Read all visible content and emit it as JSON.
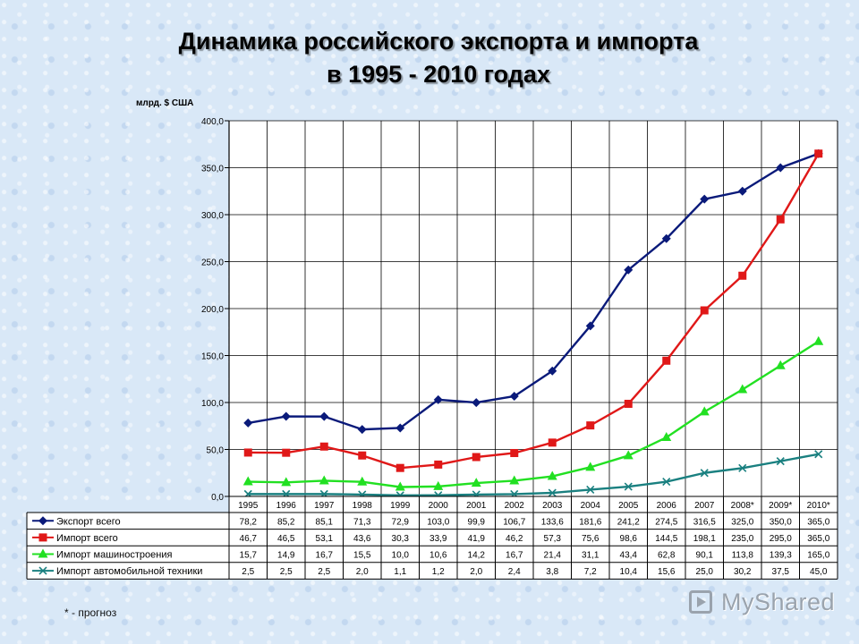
{
  "title_line1": "Динамика  российского экспорта и импорта",
  "title_line2": "в 1995 - 2010 годах",
  "footnote": "* - прогноз",
  "watermark": "MyShared",
  "chart_data": {
    "type": "line",
    "ylabel": "млрд. $ США",
    "ylim": [
      0,
      400
    ],
    "y_ticks": [
      "0,0",
      "50,0",
      "100,0",
      "150,0",
      "200,0",
      "250,0",
      "300,0",
      "350,0",
      "400,0"
    ],
    "categories": [
      "1995",
      "1996",
      "1997",
      "1998",
      "1999",
      "2000",
      "2001",
      "2002",
      "2003",
      "2004",
      "2005",
      "2006",
      "2007",
      "2008*",
      "2009*",
      "2010*"
    ],
    "grid": true,
    "legend": "data-table-below",
    "series": [
      {
        "name": "Экспорт всего",
        "color": "#0a1a7a",
        "marker": "diamond",
        "values": [
          78.2,
          85.2,
          85.1,
          71.3,
          72.9,
          103.0,
          99.9,
          106.7,
          133.6,
          181.6,
          241.2,
          274.5,
          316.5,
          325.0,
          350.0,
          365.0
        ],
        "labels": [
          "78,2",
          "85,2",
          "85,1",
          "71,3",
          "72,9",
          "103,0",
          "99,9",
          "106,7",
          "133,6",
          "181,6",
          "241,2",
          "274,5",
          "316,5",
          "325,0",
          "350,0",
          "365,0"
        ]
      },
      {
        "name": "Импорт всего",
        "color": "#e01818",
        "marker": "square",
        "values": [
          46.7,
          46.5,
          53.1,
          43.6,
          30.3,
          33.9,
          41.9,
          46.2,
          57.3,
          75.6,
          98.6,
          144.5,
          198.1,
          235.0,
          295.0,
          365.0
        ],
        "labels": [
          "46,7",
          "46,5",
          "53,1",
          "43,6",
          "30,3",
          "33,9",
          "41,9",
          "46,2",
          "57,3",
          "75,6",
          "98,6",
          "144,5",
          "198,1",
          "235,0",
          "295,0",
          "365,0"
        ]
      },
      {
        "name": "Импорт машиностроения",
        "color": "#22e022",
        "marker": "triangle",
        "values": [
          15.7,
          14.9,
          16.7,
          15.5,
          10.0,
          10.6,
          14.2,
          16.7,
          21.4,
          31.1,
          43.4,
          62.8,
          90.1,
          113.8,
          139.3,
          165.0
        ],
        "labels": [
          "15,7",
          "14,9",
          "16,7",
          "15,5",
          "10,0",
          "10,6",
          "14,2",
          "16,7",
          "21,4",
          "31,1",
          "43,4",
          "62,8",
          "90,1",
          "113,8",
          "139,3",
          "165,0"
        ]
      },
      {
        "name": "Импорт автомобильной техники",
        "color": "#1a8080",
        "marker": "x",
        "values": [
          2.5,
          2.5,
          2.5,
          2.0,
          1.1,
          1.2,
          2.0,
          2.4,
          3.8,
          7.2,
          10.4,
          15.6,
          25.0,
          30.2,
          37.5,
          45.0
        ],
        "labels": [
          "2,5",
          "2,5",
          "2,5",
          "2,0",
          "1,1",
          "1,2",
          "2,0",
          "2,4",
          "3,8",
          "7,2",
          "10,4",
          "15,6",
          "25,0",
          "30,2",
          "37,5",
          "45,0"
        ]
      }
    ]
  }
}
